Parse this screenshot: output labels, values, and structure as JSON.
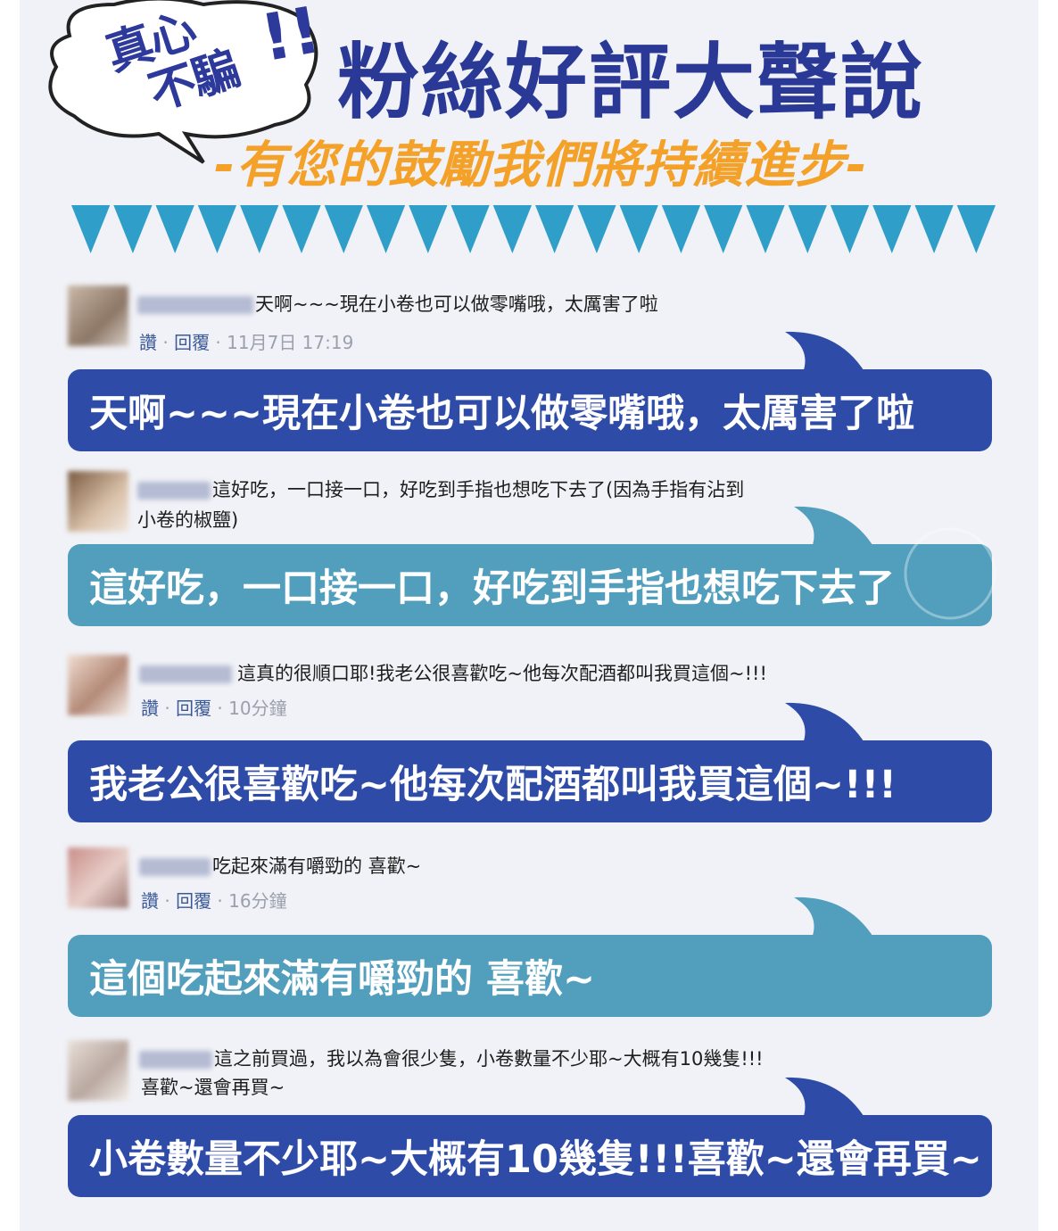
{
  "colors": {
    "title": "#2a3896",
    "subtitle": "#f4a12a",
    "bubble_blue": "#2e4ba8",
    "bubble_teal": "#529fbd",
    "triangle": "#2f9ec8"
  },
  "header": {
    "badge_line1": "真心",
    "badge_line2": "不騙",
    "badge_mark": "!!",
    "title": "粉絲好評大聲說",
    "subtitle": "-有您的鼓勵我們將持續進步-"
  },
  "comments": [
    {
      "text": "天啊~~~現在小卷也可以做零嘴哦，太厲害了啦",
      "text2": "",
      "like": "讚",
      "reply": "回覆",
      "time": "11月7日 17:19",
      "bubble": "天啊~~~現在小卷也可以做零嘴哦，太厲害了啦"
    },
    {
      "text": "這好吃，一口接一口，好吃到手指也想吃下去了(因為手指有沾到",
      "text2": "小卷的椒鹽)",
      "like": "",
      "reply": "",
      "time": "",
      "bubble": "這好吃，一口接一口，好吃到手指也想吃下去了"
    },
    {
      "text": "這真的很順口耶!我老公很喜歡吃~他每次配酒都叫我買這個~!!!",
      "text2": "",
      "like": "讚",
      "reply": "回覆",
      "time": "10分鐘",
      "bubble": "我老公很喜歡吃~他每次配酒都叫我買這個~!!!"
    },
    {
      "text": "吃起來滿有嚼勁的 喜歡~",
      "text2": "",
      "like": "讚",
      "reply": "回覆",
      "time": "16分鐘",
      "bubble": "這個吃起來滿有嚼勁的 喜歡~"
    },
    {
      "text": "這之前買過，我以為會很少隻，小卷數量不少耶~大概有10幾隻!!!",
      "text2": "喜歡~還會再買~",
      "like": "",
      "reply": "",
      "time": "",
      "bubble": "小卷數量不少耶~大概有10幾隻!!!喜歡~還會再買~"
    }
  ]
}
